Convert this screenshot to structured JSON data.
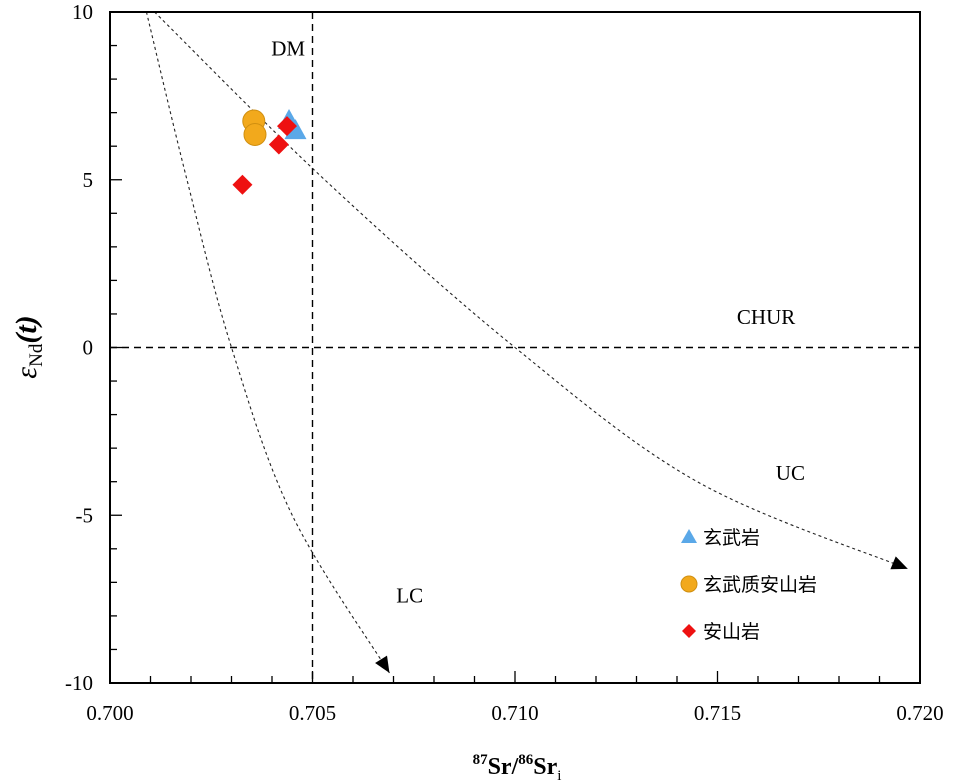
{
  "chart_data": {
    "type": "scatter",
    "xlabel": {
      "sup1": "87",
      "base1": "Sr/",
      "sup2": "86",
      "base2": "Sr",
      "sub": "i"
    },
    "ylabel": {
      "symbol": "ε",
      "sub": "Nd",
      "arg": "(t)"
    },
    "xlim": [
      0.7,
      0.72
    ],
    "ylim": [
      -10,
      10
    ],
    "x_ticks": [
      0.7,
      0.705,
      0.71,
      0.715,
      0.72
    ],
    "x_tick_labels": [
      "0.700",
      "0.705",
      "0.710",
      "0.715",
      "0.720"
    ],
    "y_ticks": [
      -10,
      -5,
      0,
      5,
      10
    ],
    "y_tick_labels": [
      "-10",
      "-5",
      "0",
      "5",
      "10"
    ],
    "reference_lines": [
      {
        "orientation": "vertical",
        "x": 0.705
      },
      {
        "orientation": "horizontal",
        "y": 0,
        "label": "CHUR"
      }
    ],
    "mixing_curves": [
      {
        "end_label": "LC",
        "points": [
          [
            0.7009,
            10
          ],
          [
            0.7019,
            5
          ],
          [
            0.703,
            0
          ],
          [
            0.7045,
            -5
          ],
          [
            0.7069,
            -9.7
          ]
        ]
      },
      {
        "end_label": "UC",
        "points": [
          [
            0.7011,
            10
          ],
          [
            0.7053,
            5
          ],
          [
            0.71,
            0
          ],
          [
            0.7145,
            -4
          ],
          [
            0.7197,
            -6.6
          ]
        ]
      }
    ],
    "labels": [
      {
        "text": "DM",
        "x": 0.7044,
        "y": 8.7
      },
      {
        "text": "CHUR",
        "x": 0.7162,
        "y": 0.7
      },
      {
        "text": "UC",
        "x": 0.7168,
        "y": -3.95
      },
      {
        "text": "LC",
        "x": 0.7074,
        "y": -7.6
      }
    ],
    "series": [
      {
        "name": "玄武岩",
        "marker": "triangle",
        "color": "#5aa8e8",
        "points": [
          [
            0.70442,
            6.75
          ],
          [
            0.70458,
            6.45
          ]
        ]
      },
      {
        "name": "玄武质安山岩",
        "marker": "circle",
        "color": "#f2a91c",
        "points": [
          [
            0.70355,
            6.75
          ],
          [
            0.70358,
            6.35
          ]
        ]
      },
      {
        "name": "安山岩",
        "marker": "diamond",
        "color": "#ee1111",
        "points": [
          [
            0.70327,
            4.85
          ],
          [
            0.70417,
            6.05
          ],
          [
            0.70437,
            6.6
          ]
        ]
      }
    ],
    "legend_position": "bottom-right"
  }
}
